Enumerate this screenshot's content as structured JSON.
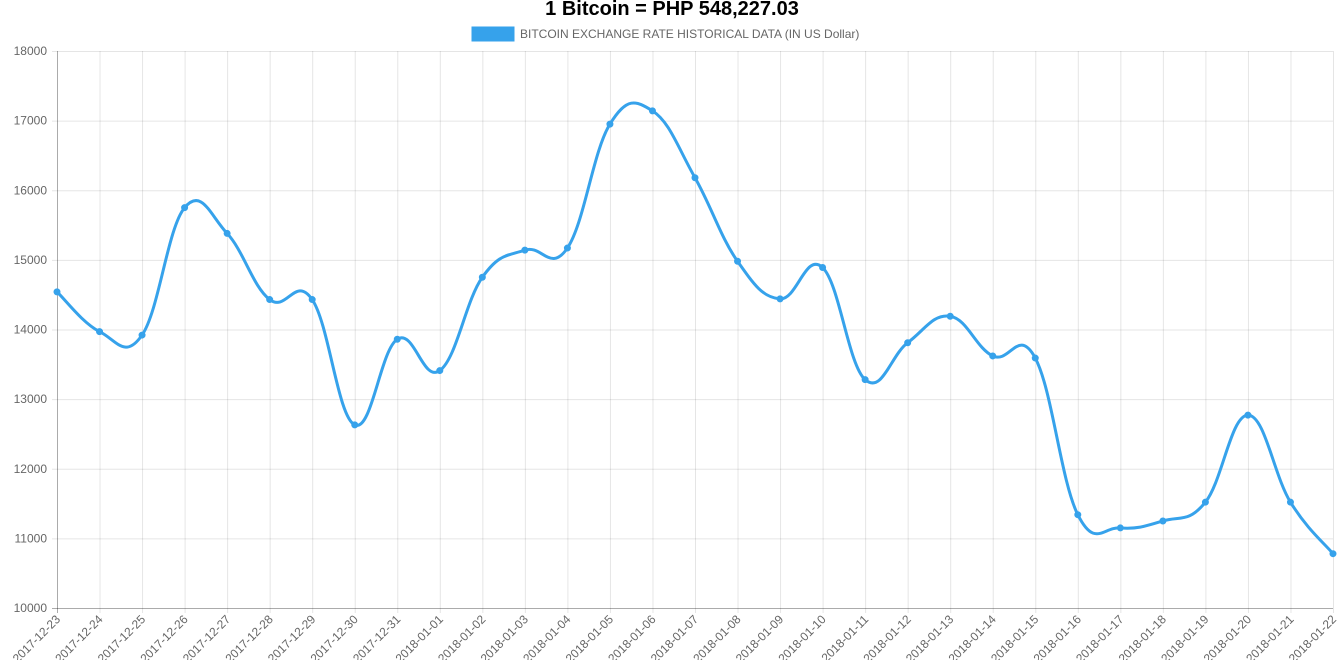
{
  "page": {
    "title": "1 Bitcoin = PHP 548,227.03"
  },
  "chart_data": {
    "type": "line",
    "title": "",
    "xlabel": "",
    "ylabel": "",
    "ylim": [
      10000,
      18000
    ],
    "yticks": [
      10000,
      11000,
      12000,
      13000,
      14000,
      15000,
      16000,
      17000,
      18000
    ],
    "grid": true,
    "legend_position": "top",
    "categories": [
      "2017-12-23",
      "2017-12-24",
      "2017-12-25",
      "2017-12-26",
      "2017-12-27",
      "2017-12-28",
      "2017-12-29",
      "2017-12-30",
      "2017-12-31",
      "2018-01-01",
      "2018-01-02",
      "2018-01-03",
      "2018-01-04",
      "2018-01-05",
      "2018-01-06",
      "2018-01-07",
      "2018-01-08",
      "2018-01-09",
      "2018-01-10",
      "2018-01-11",
      "2018-01-12",
      "2018-01-13",
      "2018-01-14",
      "2018-01-15",
      "2018-01-16",
      "2018-01-17",
      "2018-01-18",
      "2018-01-19",
      "2018-01-20",
      "2018-01-21",
      "2018-01-22"
    ],
    "series": [
      {
        "name": "BITCOIN EXCHANGE RATE HISTORICAL DATA (IN US Dollar)",
        "color": "#36a2eb",
        "values": [
          14540,
          13970,
          13920,
          15750,
          15380,
          14430,
          14430,
          12630,
          13860,
          13410,
          14750,
          15140,
          15170,
          16950,
          17140,
          16180,
          14980,
          14440,
          14890,
          13280,
          13810,
          14190,
          13620,
          13590,
          11340,
          11150,
          11250,
          11520,
          12770,
          11520,
          10780
        ]
      }
    ]
  }
}
